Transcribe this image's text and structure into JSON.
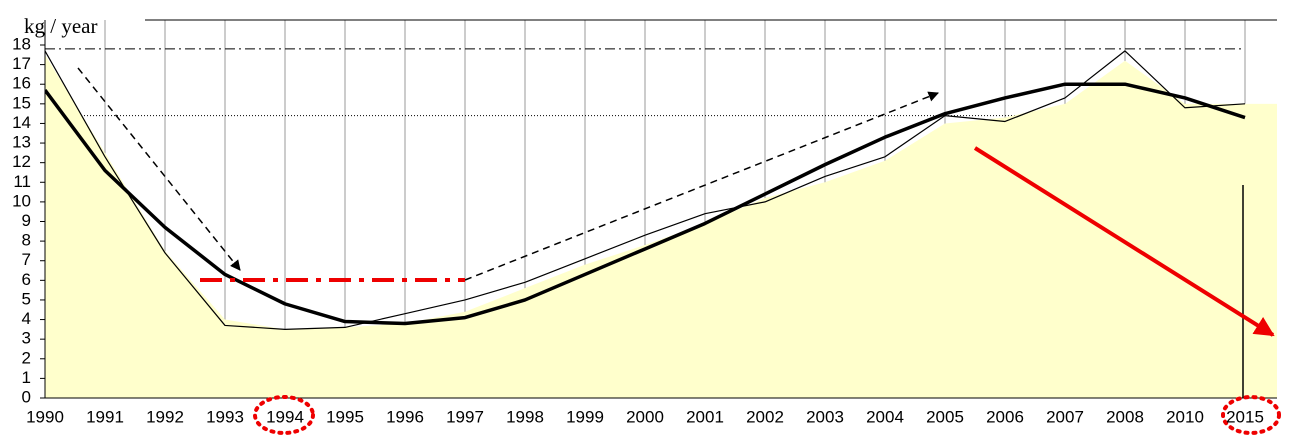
{
  "chart_data": {
    "type": "line",
    "y_label": "kg / year",
    "categories": [
      "1990",
      "1991",
      "1992",
      "1993",
      "1994",
      "1995",
      "1996",
      "1997",
      "1998",
      "1999",
      "2000",
      "2001",
      "2002",
      "2003",
      "2004",
      "2005",
      "2006",
      "2007",
      "2008",
      "2010",
      "2015"
    ],
    "series": [
      {
        "fill": true,
        "color": "#ffffcc",
        "line_width": 0,
        "values": [
          17.5,
          12.5,
          7.5,
          4.0,
          3.5,
          3.6,
          3.8,
          4.4,
          5.6,
          6.8,
          7.8,
          8.9,
          10.2,
          11.0,
          12.1,
          14.0,
          14.3,
          15.0,
          17.2,
          15.0,
          15.0
        ]
      },
      {
        "fill": false,
        "color": "#000000",
        "line_width": 1.2,
        "values": [
          17.7,
          12.3,
          7.4,
          3.7,
          3.5,
          3.6,
          4.3,
          5.0,
          5.9,
          7.1,
          8.3,
          9.4,
          10.0,
          11.3,
          12.3,
          14.4,
          14.1,
          15.3,
          17.7,
          14.8,
          15.0
        ]
      },
      {
        "fill": false,
        "color": "#000000",
        "line_width": 3.5,
        "values": [
          15.7,
          11.6,
          8.7,
          6.3,
          4.8,
          3.9,
          3.8,
          4.1,
          5.0,
          6.3,
          7.6,
          8.9,
          10.4,
          11.9,
          13.3,
          14.5,
          15.3,
          16.0,
          16.0,
          15.3,
          14.3
        ]
      }
    ],
    "reference_lines": [
      {
        "value": 17.8,
        "style": "dashdot"
      },
      {
        "value": 14.4,
        "style": "dotted"
      }
    ],
    "ylim": [
      0,
      18
    ],
    "yticks": [
      0,
      1,
      2,
      3,
      4,
      5,
      6,
      7,
      8,
      9,
      10,
      11,
      12,
      13,
      14,
      15,
      16,
      17,
      18
    ]
  }
}
